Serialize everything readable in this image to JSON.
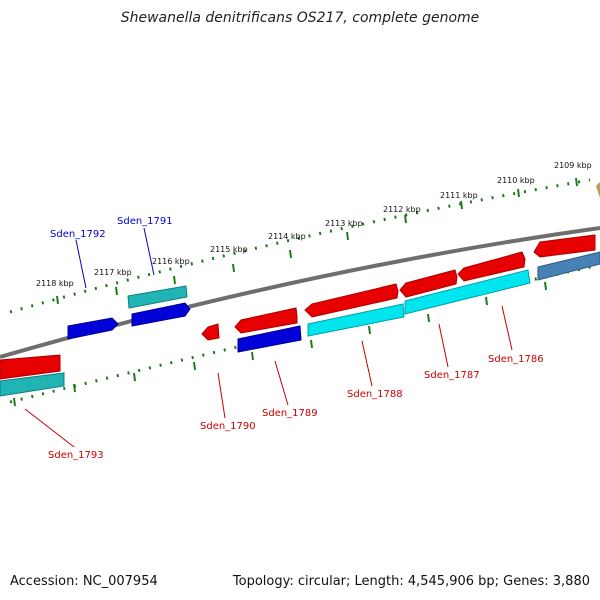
{
  "title": "Shewanella denitrificans OS217, complete genome",
  "footer": {
    "accession": "Accession: NC_007954",
    "topology": "Topology: circular; Length: 4,545,906 bp; Genes: 3,880"
  },
  "colors": {
    "forward_gene": "#e60000",
    "reverse_gene": "#0000d8",
    "forward_cds": "#00e5ee",
    "reverse_cds": "#20b4b4",
    "tick": "#1e7a1e",
    "backbone": "#808080",
    "label_forward": "#cc0000",
    "label_reverse": "#0000cc"
  },
  "kbp_labels": [
    "2109 kbp",
    "2110 kbp",
    "2111 kbp",
    "2112 kbp",
    "2113 kbp",
    "2114 kbp",
    "2115 kbp",
    "2116 kbp",
    "2117 kbp",
    "2118 kbp"
  ],
  "gene_labels": [
    {
      "id": "Sden_1786",
      "strand": "forward"
    },
    {
      "id": "Sden_1787",
      "strand": "forward"
    },
    {
      "id": "Sden_1788",
      "strand": "forward"
    },
    {
      "id": "Sden_1789",
      "strand": "forward"
    },
    {
      "id": "Sden_1790",
      "strand": "forward"
    },
    {
      "id": "Sden_1791",
      "strand": "reverse"
    },
    {
      "id": "Sden_1792",
      "strand": "reverse"
    },
    {
      "id": "Sden_1793",
      "strand": "forward"
    }
  ]
}
